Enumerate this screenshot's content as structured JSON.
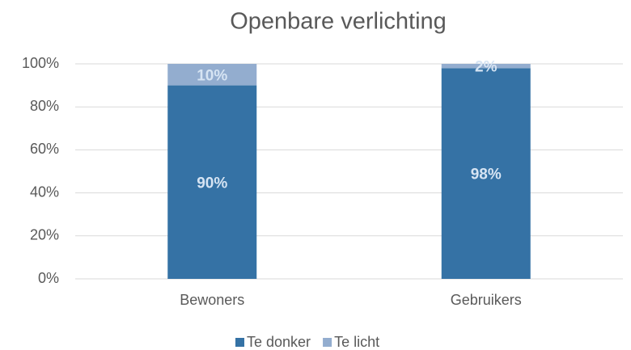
{
  "chart_data": {
    "type": "stacked_bar",
    "title": "Openbare verlichting",
    "categories": [
      "Bewoners",
      "Gebruikers"
    ],
    "series": [
      {
        "name": "Te donker",
        "color": "#3572a5",
        "values": [
          90,
          98
        ],
        "value_labels": [
          "90%",
          "98%"
        ]
      },
      {
        "name": "Te licht",
        "color": "#93adcf",
        "values": [
          10,
          2
        ],
        "value_labels": [
          "10%",
          "2%"
        ]
      }
    ],
    "ylim": [
      0,
      100
    ],
    "yticks": [
      {
        "value": 0,
        "label": "0%"
      },
      {
        "value": 20,
        "label": "20%"
      },
      {
        "value": 40,
        "label": "40%"
      },
      {
        "value": 60,
        "label": "60%"
      },
      {
        "value": 80,
        "label": "80%"
      },
      {
        "value": 100,
        "label": "100%"
      }
    ],
    "grid": true,
    "legend": "bottom"
  }
}
